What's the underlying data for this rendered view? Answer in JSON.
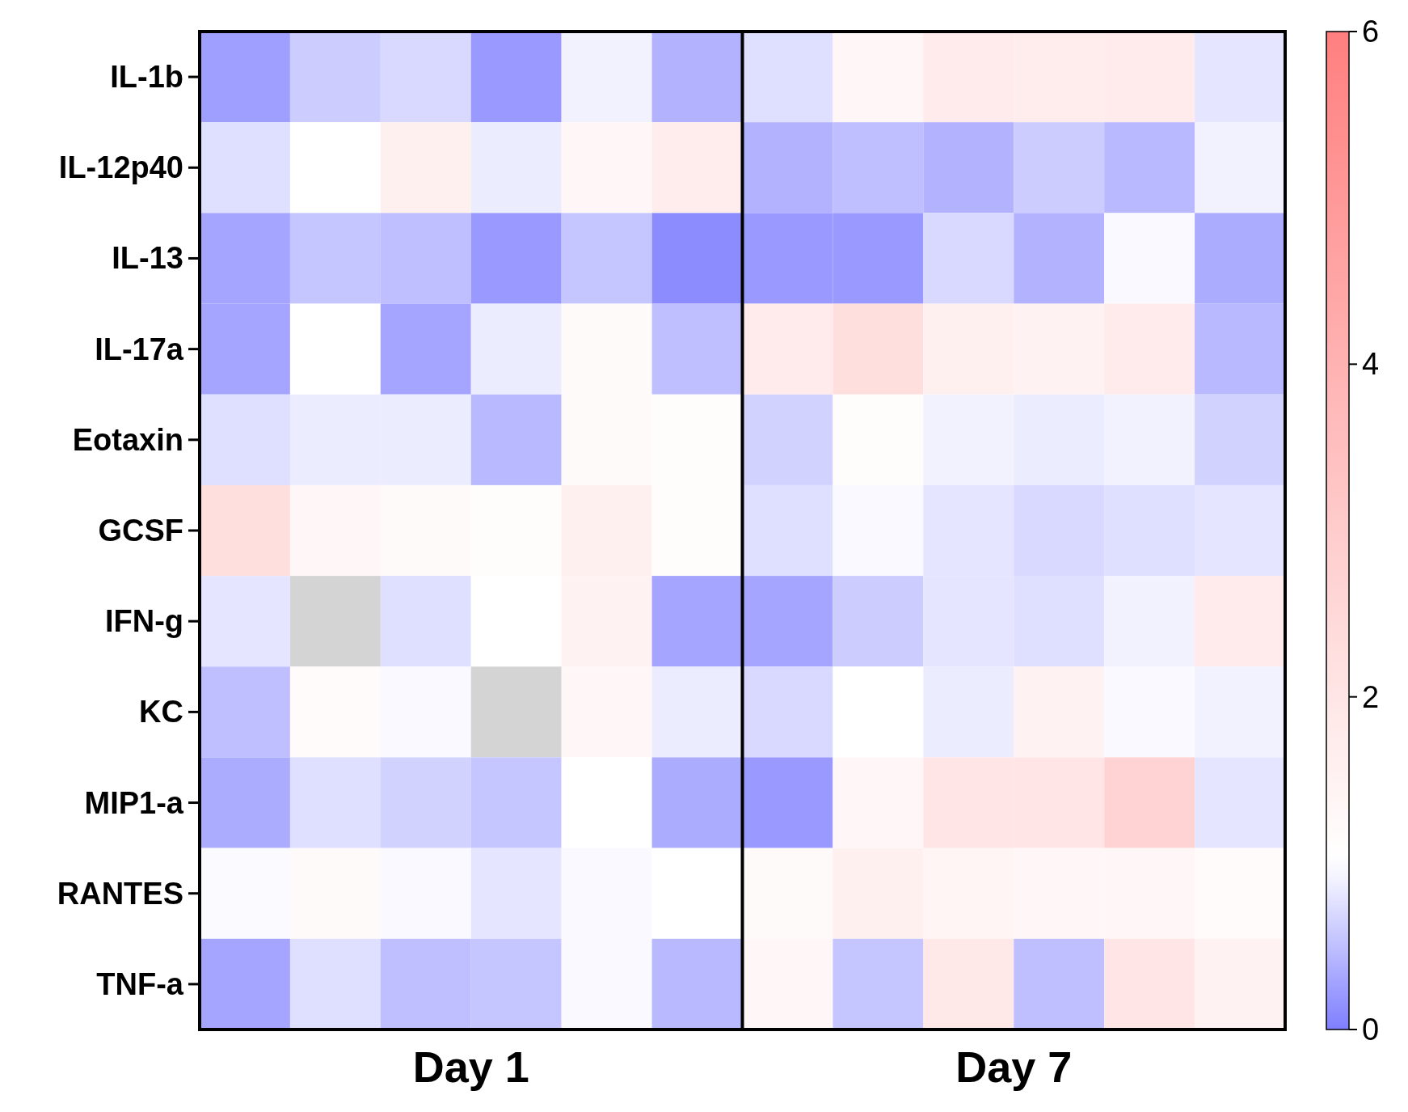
{
  "chart_data": {
    "type": "heatmap",
    "categories": [
      null,
      null,
      null,
      null,
      null,
      null,
      null,
      null,
      null,
      null,
      null,
      null
    ],
    "y_categories": [
      "IL-1b",
      "IL-12p40",
      "IL-13",
      "IL-17a",
      "Eotaxin",
      "GCSF",
      "IFN-g",
      "KC",
      "MIP1-a",
      "RANTES",
      "TNF-a"
    ],
    "cells": [
      [
        0.25,
        0.6,
        0.7,
        0.2,
        0.9,
        0.4,
        0.75,
        1.3,
        1.8,
        1.7,
        1.8,
        0.8
      ],
      [
        0.75,
        1.0,
        1.6,
        0.85,
        1.3,
        1.7,
        0.4,
        0.5,
        0.4,
        0.6,
        0.45,
        0.9
      ],
      [
        0.3,
        0.55,
        0.5,
        0.2,
        0.55,
        0.1,
        0.2,
        0.2,
        0.7,
        0.4,
        0.95,
        0.35
      ],
      [
        0.3,
        1.0,
        0.3,
        0.85,
        1.2,
        0.5,
        1.8,
        2.3,
        1.6,
        1.5,
        1.8,
        0.45
      ],
      [
        0.75,
        0.85,
        0.85,
        0.45,
        1.2,
        1.1,
        0.65,
        1.1,
        0.9,
        0.85,
        0.9,
        0.65
      ],
      [
        2.3,
        1.3,
        1.2,
        1.1,
        1.6,
        1.1,
        0.75,
        0.95,
        0.8,
        0.7,
        0.75,
        0.8
      ],
      [
        0.8,
        null,
        0.75,
        1.0,
        1.5,
        0.3,
        0.3,
        0.6,
        0.8,
        0.75,
        0.9,
        1.8
      ],
      [
        0.5,
        1.15,
        0.95,
        null,
        1.3,
        0.85,
        0.7,
        1.0,
        0.85,
        1.5,
        0.95,
        0.9
      ],
      [
        0.35,
        0.75,
        0.65,
        0.55,
        1.0,
        0.35,
        0.2,
        1.3,
        2.0,
        2.0,
        2.7,
        0.8
      ],
      [
        0.97,
        1.2,
        0.95,
        0.8,
        0.95,
        1.0,
        1.2,
        1.6,
        1.4,
        1.3,
        1.3,
        1.15
      ],
      [
        0.3,
        0.75,
        0.5,
        0.55,
        0.95,
        0.45,
        1.3,
        0.55,
        1.9,
        0.5,
        2.0,
        1.5
      ]
    ],
    "clim": [
      0,
      6
    ],
    "cticks": [
      0,
      2,
      4,
      6
    ],
    "annotations": [
      "Day 1",
      "Day 7"
    ]
  }
}
